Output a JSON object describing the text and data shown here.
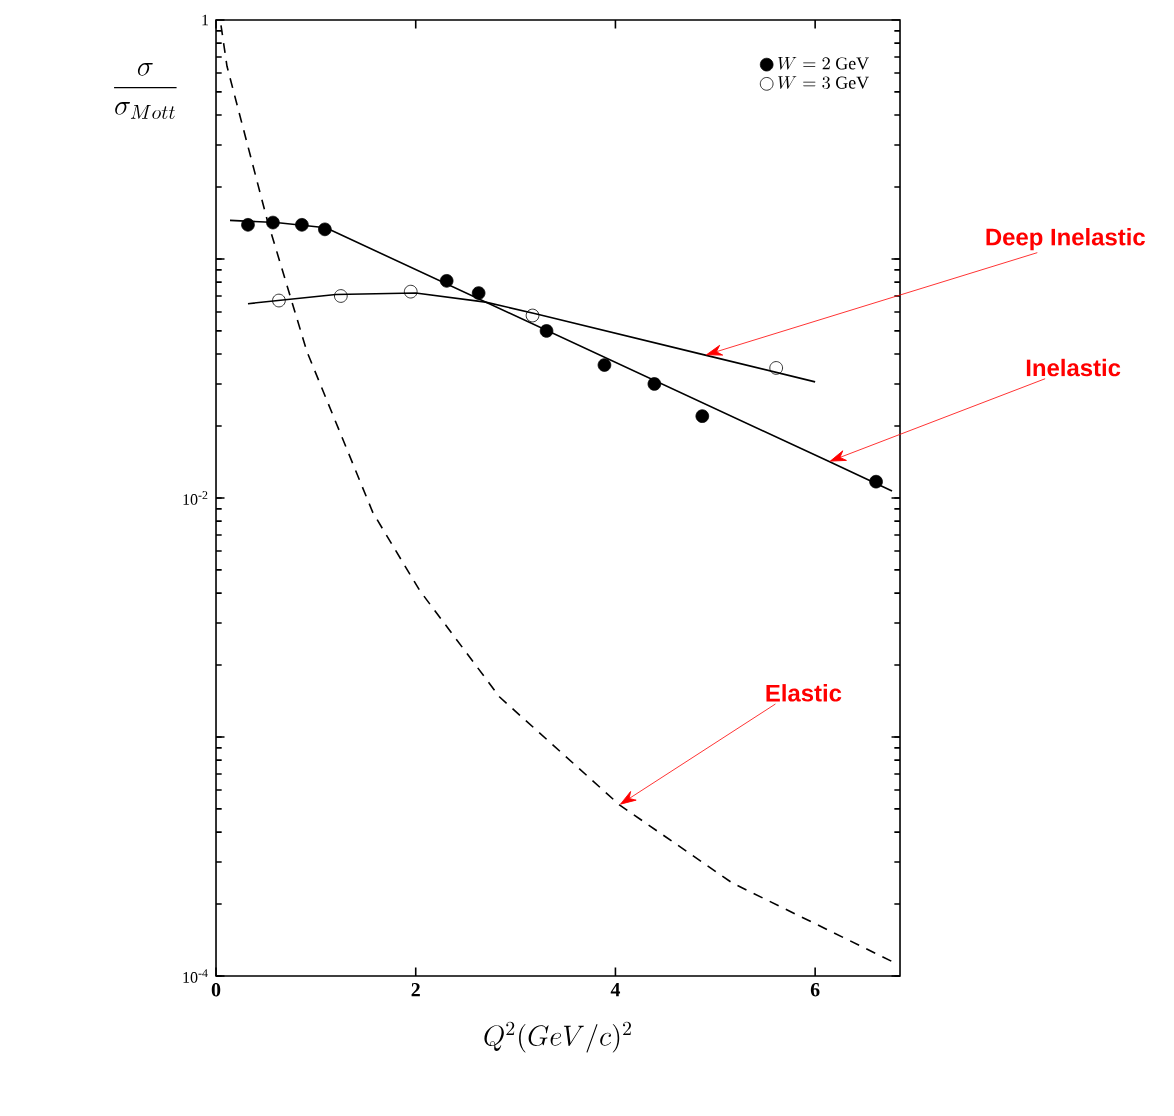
{
  "chart_data": {
    "type": "scatter",
    "xlabel": "Q^2 (GeV/c)^2",
    "ylabel": "\\frac{\\sigma}{\\sigma_{Mott}}",
    "log": "y",
    "xlim": [
      0,
      6.85
    ],
    "ylim": [
      0.0001,
      1
    ],
    "xticks": [
      0,
      2,
      4,
      6
    ],
    "yticks": [
      {
        "value": 0.0001,
        "label": "10$^{-4}$"
      },
      {
        "value": 0.001,
        "label": null
      },
      {
        "value": 0.01,
        "label": "10$^{-2}$"
      },
      {
        "value": 0.1,
        "label": null
      },
      1
    ],
    "legend": "top right",
    "grid": false,
    "series": [
      {
        "name": "W = 2\\ \\mathrm{GeV}",
        "marker": "circle",
        "color": "#000000",
        "x": [
          0.32,
          0.57,
          0.86,
          1.09,
          2.31,
          2.63,
          3.31,
          3.89,
          4.39,
          4.87,
          6.61
        ],
        "values": [
          0.139,
          0.142,
          0.139,
          0.133,
          0.081,
          0.072,
          0.05,
          0.036,
          0.03,
          0.022,
          0.0117
        ]
      },
      {
        "name": "W = 3\\ \\mathrm{GeV}",
        "marker": "circle_open",
        "color": "#000000",
        "x": [
          0.63,
          1.25,
          1.95,
          3.17,
          5.61
        ],
        "values": [
          0.067,
          0.07,
          0.073,
          0.058,
          0.035
        ]
      },
      {
        "type": "line",
        "color": "#000000",
        "line_style": "solid",
        "x": [
          0.14,
          0.6,
          1.1,
          6.14,
          6.77
        ],
        "values": [
          0.145,
          0.142,
          0.135,
          0.0142,
          0.0107
        ]
      },
      {
        "type": "line",
        "color": "#000000",
        "line_style": "solid",
        "x": [
          0.32,
          1.2,
          2.0,
          2.7,
          3.2,
          4.9,
          6.0
        ],
        "values": [
          0.065,
          0.071,
          0.072,
          0.066,
          0.059,
          0.0396,
          0.0306
        ]
      },
      {
        "type": "line",
        "color": "#000000",
        "line_style": "dashed",
        "x": [
          0.05,
          0.11,
          0.51,
          0.91,
          1.57,
          2.04,
          2.84,
          4.04,
          5.17,
          6.77
        ],
        "values": [
          0.95,
          0.64,
          0.147,
          0.041,
          0.0087,
          0.0041,
          0.00147,
          0.00052,
          0.000245,
          0.000115
        ]
      }
    ],
    "annotations": [
      {
        "text": "Deep Inelastic",
        "x": 4.9,
        "y": 0.0396
      },
      {
        "text": "Inelastic",
        "x": 6.14,
        "y": 0.0142
      },
      {
        "text": "Elastic",
        "x": 4.04,
        "y": 0.00052
      }
    ]
  }
}
